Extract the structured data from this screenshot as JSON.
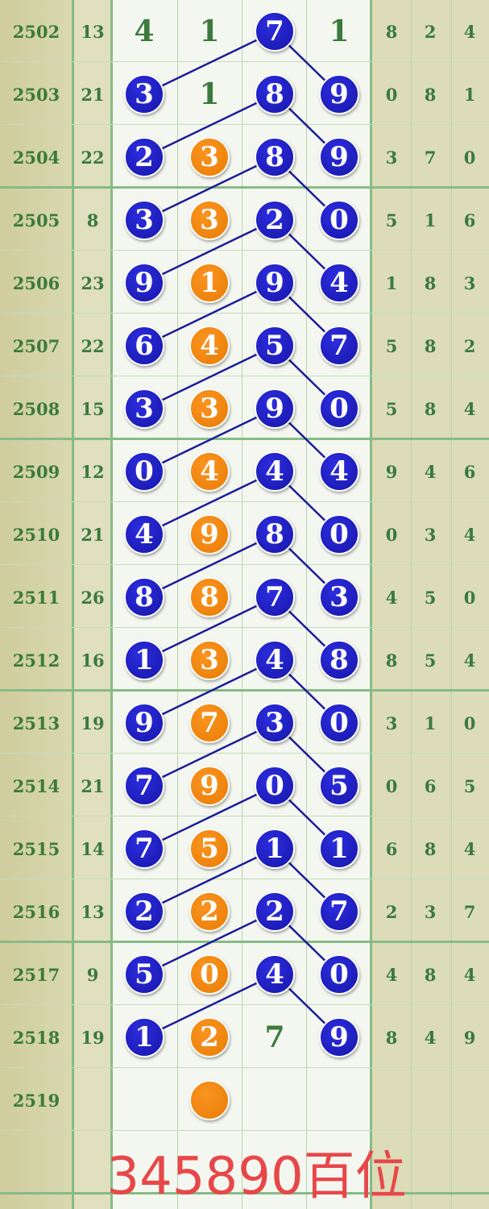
{
  "colors": {
    "blue_ball": "#1a1ab8",
    "orange_ball": "#f0820a",
    "text_green": "#3b7a3c",
    "line": "#1c1c9a",
    "caption": "#e8474a"
  },
  "rows": [
    {
      "period": "2502",
      "sum": "13",
      "digits": [
        [
          "4",
          "p"
        ],
        [
          "1",
          "p"
        ],
        [
          "7",
          "b"
        ],
        [
          "1",
          "p"
        ]
      ],
      "extra": [
        "8",
        "2",
        "4"
      ]
    },
    {
      "period": "2503",
      "sum": "21",
      "digits": [
        [
          "3",
          "b"
        ],
        [
          "1",
          "p"
        ],
        [
          "8",
          "b"
        ],
        [
          "9",
          "b"
        ]
      ],
      "extra": [
        "0",
        "8",
        "1"
      ]
    },
    {
      "period": "2504",
      "sum": "22",
      "digits": [
        [
          "2",
          "b"
        ],
        [
          "3",
          "o"
        ],
        [
          "8",
          "b"
        ],
        [
          "9",
          "b"
        ]
      ],
      "extra": [
        "3",
        "7",
        "0"
      ]
    },
    {
      "period": "2505",
      "sum": "8",
      "digits": [
        [
          "3",
          "b"
        ],
        [
          "3",
          "o"
        ],
        [
          "2",
          "b"
        ],
        [
          "0",
          "b"
        ]
      ],
      "extra": [
        "5",
        "1",
        "6"
      ]
    },
    {
      "period": "2506",
      "sum": "23",
      "digits": [
        [
          "9",
          "b"
        ],
        [
          "1",
          "o"
        ],
        [
          "9",
          "b"
        ],
        [
          "4",
          "b"
        ]
      ],
      "extra": [
        "1",
        "8",
        "3"
      ]
    },
    {
      "period": "2507",
      "sum": "22",
      "digits": [
        [
          "6",
          "b"
        ],
        [
          "4",
          "o"
        ],
        [
          "5",
          "b"
        ],
        [
          "7",
          "b"
        ]
      ],
      "extra": [
        "5",
        "8",
        "2"
      ]
    },
    {
      "period": "2508",
      "sum": "15",
      "digits": [
        [
          "3",
          "b"
        ],
        [
          "3",
          "o"
        ],
        [
          "9",
          "b"
        ],
        [
          "0",
          "b"
        ]
      ],
      "extra": [
        "5",
        "8",
        "4"
      ]
    },
    {
      "period": "2509",
      "sum": "12",
      "digits": [
        [
          "0",
          "b"
        ],
        [
          "4",
          "o"
        ],
        [
          "4",
          "b"
        ],
        [
          "4",
          "b"
        ]
      ],
      "extra": [
        "9",
        "4",
        "6"
      ]
    },
    {
      "period": "2510",
      "sum": "21",
      "digits": [
        [
          "4",
          "b"
        ],
        [
          "9",
          "o"
        ],
        [
          "8",
          "b"
        ],
        [
          "0",
          "b"
        ]
      ],
      "extra": [
        "0",
        "3",
        "4"
      ]
    },
    {
      "period": "2511",
      "sum": "26",
      "digits": [
        [
          "8",
          "b"
        ],
        [
          "8",
          "o"
        ],
        [
          "7",
          "b"
        ],
        [
          "3",
          "b"
        ]
      ],
      "extra": [
        "4",
        "5",
        "0"
      ]
    },
    {
      "period": "2512",
      "sum": "16",
      "digits": [
        [
          "1",
          "b"
        ],
        [
          "3",
          "o"
        ],
        [
          "4",
          "b"
        ],
        [
          "8",
          "b"
        ]
      ],
      "extra": [
        "8",
        "5",
        "4"
      ]
    },
    {
      "period": "2513",
      "sum": "19",
      "digits": [
        [
          "9",
          "b"
        ],
        [
          "7",
          "o"
        ],
        [
          "3",
          "b"
        ],
        [
          "0",
          "b"
        ]
      ],
      "extra": [
        "3",
        "1",
        "0"
      ]
    },
    {
      "period": "2514",
      "sum": "21",
      "digits": [
        [
          "7",
          "b"
        ],
        [
          "9",
          "o"
        ],
        [
          "0",
          "b"
        ],
        [
          "5",
          "b"
        ]
      ],
      "extra": [
        "0",
        "6",
        "5"
      ]
    },
    {
      "period": "2515",
      "sum": "14",
      "digits": [
        [
          "7",
          "b"
        ],
        [
          "5",
          "o"
        ],
        [
          "1",
          "b"
        ],
        [
          "1",
          "b"
        ]
      ],
      "extra": [
        "6",
        "8",
        "4"
      ]
    },
    {
      "period": "2516",
      "sum": "13",
      "digits": [
        [
          "2",
          "b"
        ],
        [
          "2",
          "o"
        ],
        [
          "2",
          "b"
        ],
        [
          "7",
          "b"
        ]
      ],
      "extra": [
        "2",
        "3",
        "7"
      ]
    },
    {
      "period": "2517",
      "sum": "9",
      "digits": [
        [
          "5",
          "b"
        ],
        [
          "0",
          "o"
        ],
        [
          "4",
          "b"
        ],
        [
          "0",
          "b"
        ]
      ],
      "extra": [
        "4",
        "8",
        "4"
      ]
    },
    {
      "period": "2518",
      "sum": "19",
      "digits": [
        [
          "1",
          "b"
        ],
        [
          "2",
          "o"
        ],
        [
          "7",
          "p"
        ],
        [
          "9",
          "b"
        ]
      ],
      "extra": [
        "8",
        "4",
        "9"
      ]
    },
    {
      "period": "2519",
      "sum": "",
      "digits": [
        [
          "",
          ""
        ],
        [
          "",
          "o"
        ],
        [
          "",
          ""
        ],
        [
          "",
          ""
        ]
      ],
      "extra": [
        "",
        "",
        ""
      ]
    }
  ],
  "caption": "345890百位"
}
